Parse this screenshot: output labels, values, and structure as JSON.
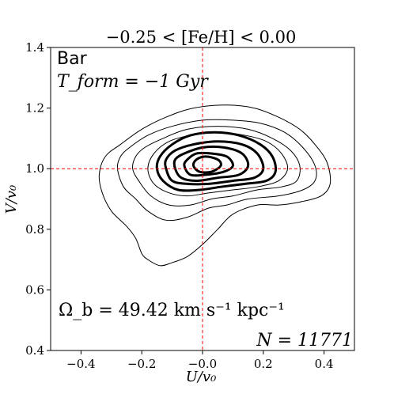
{
  "chart_data": {
    "type": "contour",
    "title": "−0.25 < [Fe/H] < 0.00",
    "xlabel": "U/v₀",
    "ylabel": "V/v₀",
    "xlim": [
      -0.5,
      0.5
    ],
    "ylim": [
      0.4,
      1.4
    ],
    "xticks": [
      "−0.4",
      "−0.2",
      "−0.0",
      "0.2",
      "0.4"
    ],
    "xtick_values": [
      -0.4,
      -0.2,
      0.0,
      0.2,
      0.4
    ],
    "yticks": [
      "0.4",
      "0.6",
      "0.8",
      "1.0",
      "1.2",
      "1.4"
    ],
    "ytick_values": [
      0.4,
      0.6,
      0.8,
      1.0,
      1.2,
      1.4
    ],
    "reference_lines": {
      "x": 0.0,
      "y": 1.0,
      "color": "#ff0000",
      "style": "dashed"
    },
    "annotations": {
      "bar_label": "Bar",
      "tform_label": "T_form = −1 Gyr",
      "omega_label": "Ω_b = 49.42 km s⁻¹ kpc⁻¹",
      "n_label": "N = 11771"
    },
    "contours": [
      {
        "level": 1,
        "weight": "thin",
        "points": [
          [
            -0.34,
            0.98
          ],
          [
            -0.33,
            0.92
          ],
          [
            -0.3,
            0.86
          ],
          [
            -0.25,
            0.81
          ],
          [
            -0.22,
            0.77
          ],
          [
            -0.2,
            0.72
          ],
          [
            -0.18,
            0.7
          ],
          [
            -0.14,
            0.68
          ],
          [
            -0.1,
            0.69
          ],
          [
            -0.05,
            0.71
          ],
          [
            0.0,
            0.75
          ],
          [
            0.05,
            0.8
          ],
          [
            0.1,
            0.85
          ],
          [
            0.18,
            0.88
          ],
          [
            0.25,
            0.88
          ],
          [
            0.32,
            0.89
          ],
          [
            0.39,
            0.91
          ],
          [
            0.42,
            0.95
          ],
          [
            0.41,
            1.02
          ],
          [
            0.37,
            1.08
          ],
          [
            0.32,
            1.13
          ],
          [
            0.25,
            1.17
          ],
          [
            0.17,
            1.2
          ],
          [
            0.08,
            1.21
          ],
          [
            -0.03,
            1.2
          ],
          [
            -0.12,
            1.17
          ],
          [
            -0.2,
            1.13
          ],
          [
            -0.27,
            1.08
          ],
          [
            -0.32,
            1.04
          ]
        ]
      },
      {
        "level": 2,
        "weight": "thin",
        "points": [
          [
            -0.28,
            1.0
          ],
          [
            -0.26,
            0.94
          ],
          [
            -0.22,
            0.9
          ],
          [
            -0.18,
            0.86
          ],
          [
            -0.12,
            0.83
          ],
          [
            -0.05,
            0.84
          ],
          [
            0.02,
            0.87
          ],
          [
            0.08,
            0.88
          ],
          [
            0.15,
            0.9
          ],
          [
            0.25,
            0.91
          ],
          [
            0.33,
            0.93
          ],
          [
            0.37,
            0.96
          ],
          [
            0.37,
            1.01
          ],
          [
            0.33,
            1.07
          ],
          [
            0.27,
            1.12
          ],
          [
            0.19,
            1.15
          ],
          [
            0.1,
            1.16
          ],
          [
            0.0,
            1.16
          ],
          [
            -0.1,
            1.14
          ],
          [
            -0.18,
            1.11
          ],
          [
            -0.24,
            1.07
          ],
          [
            -0.27,
            1.04
          ]
        ]
      },
      {
        "level": 3,
        "weight": "thin",
        "points": [
          [
            -0.23,
            1.0
          ],
          [
            -0.21,
            0.96
          ],
          [
            -0.17,
            0.91
          ],
          [
            -0.11,
            0.88
          ],
          [
            -0.04,
            0.88
          ],
          [
            0.03,
            0.9
          ],
          [
            0.1,
            0.91
          ],
          [
            0.18,
            0.93
          ],
          [
            0.26,
            0.94
          ],
          [
            0.31,
            0.96
          ],
          [
            0.32,
            1.01
          ],
          [
            0.29,
            1.06
          ],
          [
            0.23,
            1.1
          ],
          [
            0.15,
            1.13
          ],
          [
            0.05,
            1.14
          ],
          [
            -0.05,
            1.13
          ],
          [
            -0.13,
            1.1
          ],
          [
            -0.19,
            1.07
          ],
          [
            -0.22,
            1.04
          ]
        ]
      },
      {
        "level": 4,
        "weight": "thin",
        "points": [
          [
            -0.18,
            1.0
          ],
          [
            -0.16,
            0.95
          ],
          [
            -0.11,
            0.92
          ],
          [
            -0.05,
            0.91
          ],
          [
            0.02,
            0.92
          ],
          [
            0.1,
            0.93
          ],
          [
            0.18,
            0.94
          ],
          [
            0.25,
            0.96
          ],
          [
            0.28,
            1.0
          ],
          [
            0.26,
            1.05
          ],
          [
            0.21,
            1.09
          ],
          [
            0.14,
            1.11
          ],
          [
            0.05,
            1.12
          ],
          [
            -0.04,
            1.11
          ],
          [
            -0.11,
            1.09
          ],
          [
            -0.16,
            1.05
          ]
        ]
      },
      {
        "level": 5,
        "weight": "thick",
        "points": [
          [
            -0.15,
            1.0
          ],
          [
            -0.13,
            0.96
          ],
          [
            -0.08,
            0.93
          ],
          [
            -0.01,
            0.93
          ],
          [
            0.06,
            0.94
          ],
          [
            0.14,
            0.95
          ],
          [
            0.21,
            0.96
          ],
          [
            0.24,
            0.99
          ],
          [
            0.23,
            1.04
          ],
          [
            0.19,
            1.08
          ],
          [
            0.12,
            1.11
          ],
          [
            0.04,
            1.12
          ],
          [
            -0.04,
            1.11
          ],
          [
            -0.1,
            1.08
          ],
          [
            -0.14,
            1.04
          ]
        ]
      },
      {
        "level": 6,
        "weight": "thick",
        "points": [
          [
            -0.12,
            1.0
          ],
          [
            -0.1,
            0.96
          ],
          [
            -0.05,
            0.95
          ],
          [
            0.02,
            0.95
          ],
          [
            0.1,
            0.96
          ],
          [
            0.17,
            0.97
          ],
          [
            0.2,
            1.0
          ],
          [
            0.18,
            1.05
          ],
          [
            0.13,
            1.08
          ],
          [
            0.05,
            1.09
          ],
          [
            -0.03,
            1.08
          ],
          [
            -0.09,
            1.06
          ],
          [
            -0.12,
            1.03
          ]
        ]
      },
      {
        "level": 7,
        "weight": "thick",
        "points": [
          [
            -0.09,
            1.0
          ],
          [
            -0.07,
            0.97
          ],
          [
            -0.02,
            0.96
          ],
          [
            0.05,
            0.97
          ],
          [
            0.12,
            0.98
          ],
          [
            0.15,
            1.01
          ],
          [
            0.13,
            1.05
          ],
          [
            0.07,
            1.07
          ],
          [
            0.0,
            1.07
          ],
          [
            -0.06,
            1.05
          ],
          [
            -0.09,
            1.03
          ]
        ]
      },
      {
        "level": 8,
        "weight": "thick",
        "points": [
          [
            -0.06,
            1.01
          ],
          [
            -0.04,
            0.98
          ],
          [
            0.01,
            0.98
          ],
          [
            0.07,
            0.99
          ],
          [
            0.1,
            1.01
          ],
          [
            0.08,
            1.04
          ],
          [
            0.03,
            1.05
          ],
          [
            -0.02,
            1.05
          ],
          [
            -0.05,
            1.03
          ]
        ]
      },
      {
        "level": 9,
        "weight": "thick",
        "points": [
          [
            -0.03,
            1.01
          ],
          [
            -0.01,
            0.99
          ],
          [
            0.03,
            0.99
          ],
          [
            0.06,
            1.01
          ],
          [
            0.05,
            1.03
          ],
          [
            0.01,
            1.04
          ],
          [
            -0.02,
            1.03
          ]
        ]
      }
    ]
  }
}
